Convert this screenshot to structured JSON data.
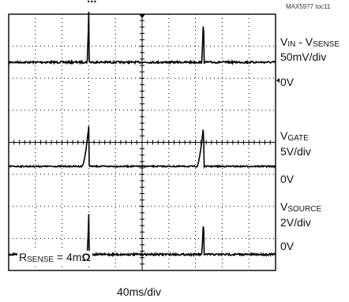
{
  "header": {
    "title_fragment": "...",
    "figure_id": "MAX5977 toc11"
  },
  "chart_data": {
    "type": "line",
    "time_scale": "40ms/div",
    "grid": {
      "divisions_x": 10,
      "divisions_y": 8,
      "on": true
    },
    "annotation": {
      "prefix": "R",
      "sub": "SENSE",
      "value": " = 4m",
      "unit": "Ω"
    },
    "channels": [
      {
        "label_main": "V",
        "label_sub1": "IN",
        "label_mid": " - V",
        "label_sub2": "SENSE",
        "scale": "50mV/div",
        "zero_label": "0V",
        "baseline_div": 1.5,
        "pulse_times_div": [
          3.0,
          7.3
        ],
        "pulse_height_div": 1.6,
        "pulse_shape": "spike",
        "noise": 0.03
      },
      {
        "label_main": "V",
        "label_sub1": "GATE",
        "label_mid": "",
        "label_sub2": "",
        "scale": "5V/div",
        "zero_label": "0V",
        "baseline_div": 4.75,
        "pulse_times_div": [
          3.0,
          7.3
        ],
        "pulse_height_div": 1.25,
        "pulse_shape": "ramp",
        "noise": 0.02
      },
      {
        "label_main": "V",
        "label_sub1": "SOURCE",
        "label_mid": "",
        "label_sub2": "",
        "scale": "2V/div",
        "zero_label": "0V",
        "baseline_div": 7.5,
        "pulse_times_div": [
          3.0,
          7.3
        ],
        "pulse_height_div": 1.25,
        "pulse_shape": "spike",
        "noise": 0.03
      }
    ]
  }
}
